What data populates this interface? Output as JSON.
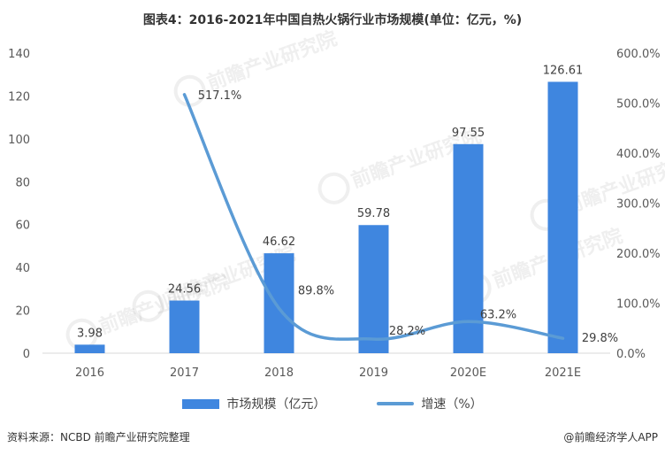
{
  "header": {
    "title": "图表4：2016-2021年中国自热火锅行业市场规模(单位：亿元，%)"
  },
  "colors": {
    "bar": "#3f86df",
    "line": "#5b9bd5",
    "axis": "#d9d9d9",
    "tick": "#595959",
    "label": "#404040"
  },
  "watermark": {
    "text": "前瞻产业研究院",
    "icon": "qianzhan-logo-icon"
  },
  "legend": {
    "bar_label": "市场规模（亿元）",
    "line_label": "增速（%）"
  },
  "footer": {
    "source": "资料来源：NCBD 前瞻产业研究院整理",
    "credit": "@前瞻经济学人APP"
  },
  "chart_data": {
    "type": "bar",
    "categories": [
      "2016",
      "2017",
      "2018",
      "2019",
      "2020E",
      "2021E"
    ],
    "series": [
      {
        "name": "市场规模（亿元）",
        "type": "bar",
        "axis": "left",
        "values": [
          3.98,
          24.56,
          46.62,
          59.78,
          97.55,
          126.61
        ],
        "labels": [
          "3.98",
          "24.56",
          "46.62",
          "59.78",
          "97.55",
          "126.61"
        ]
      },
      {
        "name": "增速（%）",
        "type": "line",
        "axis": "right",
        "values": [
          null,
          517.1,
          89.8,
          28.2,
          63.2,
          29.8
        ],
        "labels": [
          "",
          "517.1%",
          "89.8%",
          "28.2%",
          "63.2%",
          "29.8%"
        ]
      }
    ],
    "ylim_left": [
      0,
      140
    ],
    "yticks_left": [
      "0",
      "20",
      "40",
      "60",
      "80",
      "100",
      "120",
      "140"
    ],
    "ylim_right": [
      0,
      600
    ],
    "yticks_right": [
      "0.0%",
      "100.0%",
      "200.0%",
      "300.0%",
      "400.0%",
      "500.0%",
      "600.0%"
    ],
    "grid": false,
    "legend_position": "bottom"
  }
}
